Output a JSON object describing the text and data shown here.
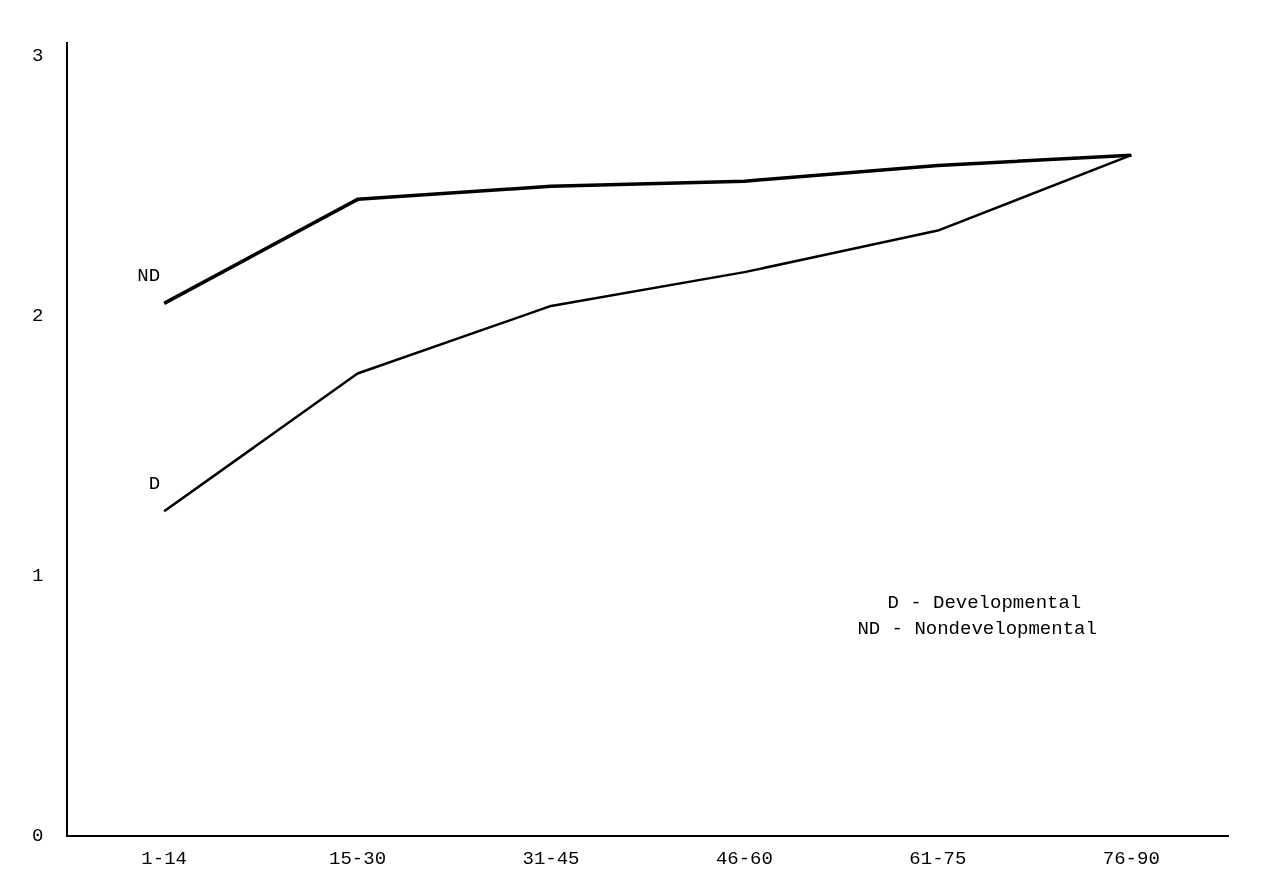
{
  "chart_data": {
    "type": "line",
    "categories": [
      "1-14",
      "15-30",
      "31-45",
      "46-60",
      "61-75",
      "76-90"
    ],
    "series": [
      {
        "name": "ND",
        "color": "#000000",
        "values": [
          2.05,
          2.45,
          2.5,
          2.52,
          2.58,
          2.62
        ]
      },
      {
        "name": "D",
        "color": "#000000",
        "values": [
          1.25,
          1.78,
          2.04,
          2.17,
          2.33,
          2.62
        ]
      }
    ],
    "ylim": [
      0,
      3.05
    ],
    "yticks": [
      0,
      1,
      2,
      3
    ],
    "grid": false,
    "legend": false,
    "marker": "none",
    "line_style": "solid",
    "annotations": [
      "D - Developmental",
      "ND - Nondevelopmental"
    ]
  }
}
